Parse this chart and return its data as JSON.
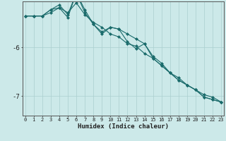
{
  "title": "",
  "xlabel": "Humidex (Indice chaleur)",
  "bg_color": "#cce9e9",
  "line_color": "#1a6b6b",
  "grid_color": "#aacfcf",
  "x_values": [
    0,
    1,
    2,
    3,
    4,
    5,
    6,
    7,
    8,
    9,
    10,
    11,
    12,
    13,
    14,
    15,
    16,
    17,
    18,
    19,
    20,
    21,
    22,
    23
  ],
  "series1": [
    -5.35,
    -5.35,
    -5.35,
    -5.28,
    -5.18,
    -5.28,
    -5.08,
    -5.32,
    -5.48,
    -5.58,
    -5.72,
    -5.78,
    -5.92,
    -5.97,
    -6.12,
    -6.22,
    -6.37,
    -6.52,
    -6.67,
    -6.77,
    -6.87,
    -7.02,
    -7.07,
    -7.12
  ],
  "series2": [
    -5.35,
    -5.35,
    -5.35,
    -5.22,
    -5.12,
    -5.32,
    -4.88,
    -5.22,
    -5.52,
    -5.68,
    -5.58,
    -5.62,
    -5.88,
    -6.02,
    -5.92,
    -6.22,
    -6.37,
    -6.52,
    -6.67,
    -6.77,
    -6.87,
    -7.02,
    -7.07,
    -7.12
  ],
  "series3": [
    -5.35,
    -5.35,
    -5.35,
    -5.22,
    -5.18,
    -5.38,
    -4.88,
    -5.28,
    -5.52,
    -5.72,
    -5.58,
    -5.62,
    -5.72,
    -5.82,
    -5.92,
    -6.18,
    -6.32,
    -6.52,
    -6.62,
    -6.77,
    -6.87,
    -6.97,
    -7.02,
    -7.12
  ],
  "ylim": [
    -7.4,
    -5.05
  ],
  "yticks": [
    -7.0,
    -6.0
  ],
  "xticks": [
    0,
    1,
    2,
    3,
    4,
    5,
    6,
    7,
    8,
    9,
    10,
    11,
    12,
    13,
    14,
    15,
    16,
    17,
    18,
    19,
    20,
    21,
    22,
    23
  ]
}
